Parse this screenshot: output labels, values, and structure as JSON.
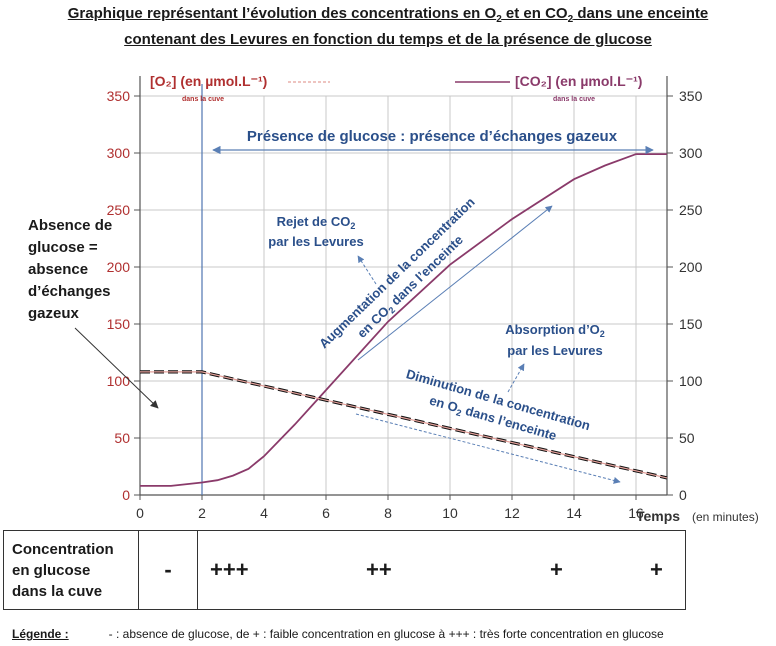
{
  "title_line1": "Graphique représentant l’évolution des concentrations en O",
  "title_line1_sub1": "2",
  "title_line1_mid": " et en CO",
  "title_line1_sub2": "2",
  "title_line1_end": " dans une enceinte",
  "title_line2": "contenant des Levures en fonction du temps et de la présence de glucose",
  "chart_data": {
    "type": "line",
    "x_label": "Temps",
    "x_unit": "(en minutes)",
    "x_ticks": [
      "0",
      "2",
      "4",
      "6",
      "8",
      "10",
      "12",
      "14",
      "16"
    ],
    "xlim": [
      0,
      17
    ],
    "y_left_label": "[O₂] (en µmol.L⁻¹)",
    "y_left_sublabel": "dans la cuve",
    "y_right_label": "[CO₂] (en µmol.L⁻¹)",
    "y_right_sublabel": "dans la cuve",
    "y_ticks": [
      "0",
      "50",
      "100",
      "150",
      "200",
      "250",
      "300",
      "350"
    ],
    "ylim": [
      0,
      350
    ],
    "series": [
      {
        "name": "[O₂]",
        "color": "#e3a09a",
        "x": [
          0,
          2,
          17
        ],
        "y": [
          108,
          108,
          15
        ]
      },
      {
        "name": "[CO₂]",
        "color": "#8a3a6a",
        "x": [
          0,
          1,
          2,
          2.5,
          3,
          3.5,
          4,
          5,
          6,
          8,
          10,
          12,
          14,
          15,
          16,
          17
        ],
        "y": [
          8,
          8,
          11,
          13,
          17,
          23,
          34,
          62,
          92,
          152,
          202,
          242,
          277,
          289,
          299,
          299
        ]
      }
    ],
    "marker_x": 2
  },
  "annotations": {
    "glucose_presence": "Présence de glucose : présence d’échanges gazeux",
    "absence_1": "Absence de",
    "absence_2": "glucose =",
    "absence_3": "absence",
    "absence_4": "d’échanges",
    "absence_5": "gazeux",
    "rejet_1": "Rejet de CO",
    "rejet_sub": "2",
    "rejet_2": "par les Levures",
    "augment_1": "Augmentation de la concentration",
    "augment_2": "en CO",
    "augment_sub": "2",
    "augment_3": " dans l’enceinte",
    "absorption_1": "Absorption d’O",
    "absorption_sub": "2",
    "absorption_2": "par les Levures",
    "diminution_1": "Diminution de la concentration",
    "diminution_2": "en O",
    "diminution_sub": "2",
    "diminution_3": " dans l’enceinte"
  },
  "table": {
    "header_1": "Concentration",
    "header_2": "en glucose",
    "header_3": "dans la cuve",
    "cells": [
      "-",
      "+++",
      "++",
      "+",
      "+"
    ]
  },
  "legend": {
    "key": "Légende :",
    "text": "- : absence de glucose, de + : faible concentration en glucose à +++ : très forte concentration en glucose"
  }
}
